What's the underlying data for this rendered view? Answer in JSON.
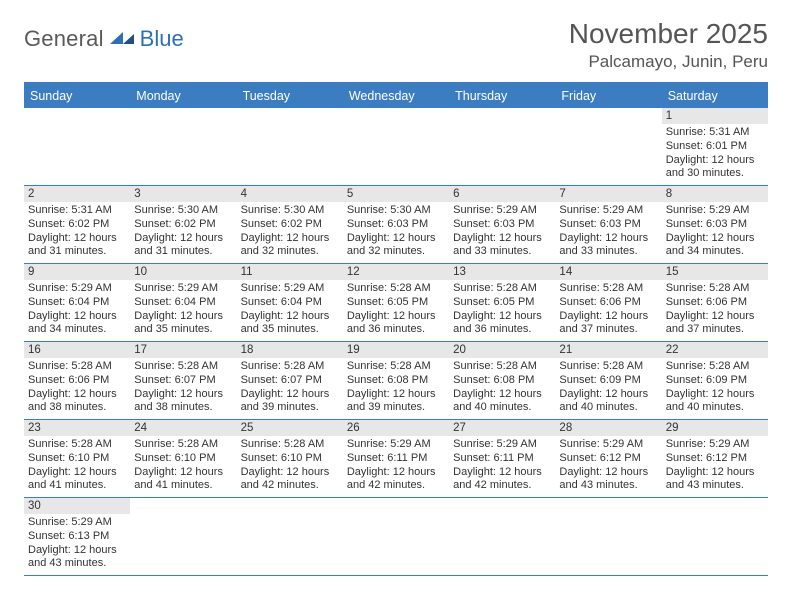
{
  "logo": {
    "text1": "General",
    "text2": "Blue"
  },
  "title": "November 2025",
  "location": "Palcamayo, Junin, Peru",
  "colors": {
    "header_bg": "#3b7dc0",
    "header_text": "#ffffff",
    "daynum_bg": "#e7e7e7",
    "divider": "#3b7dc0",
    "body_text": "#333333",
    "title_text": "#555555",
    "logo_gray": "#5a5a5a",
    "logo_blue": "#2f6fb3",
    "page_bg": "#ffffff"
  },
  "fonts": {
    "title_size_pt": 21,
    "location_size_pt": 13,
    "header_size_pt": 9.5,
    "daynum_size_pt": 8.5,
    "body_size_pt": 8.3
  },
  "dayNames": [
    "Sunday",
    "Monday",
    "Tuesday",
    "Wednesday",
    "Thursday",
    "Friday",
    "Saturday"
  ],
  "weeks": [
    [
      null,
      null,
      null,
      null,
      null,
      null,
      {
        "n": "1",
        "sunrise": "Sunrise: 5:31 AM",
        "sunset": "Sunset: 6:01 PM",
        "daylight": "Daylight: 12 hours and 30 minutes."
      }
    ],
    [
      {
        "n": "2",
        "sunrise": "Sunrise: 5:31 AM",
        "sunset": "Sunset: 6:02 PM",
        "daylight": "Daylight: 12 hours and 31 minutes."
      },
      {
        "n": "3",
        "sunrise": "Sunrise: 5:30 AM",
        "sunset": "Sunset: 6:02 PM",
        "daylight": "Daylight: 12 hours and 31 minutes."
      },
      {
        "n": "4",
        "sunrise": "Sunrise: 5:30 AM",
        "sunset": "Sunset: 6:02 PM",
        "daylight": "Daylight: 12 hours and 32 minutes."
      },
      {
        "n": "5",
        "sunrise": "Sunrise: 5:30 AM",
        "sunset": "Sunset: 6:03 PM",
        "daylight": "Daylight: 12 hours and 32 minutes."
      },
      {
        "n": "6",
        "sunrise": "Sunrise: 5:29 AM",
        "sunset": "Sunset: 6:03 PM",
        "daylight": "Daylight: 12 hours and 33 minutes."
      },
      {
        "n": "7",
        "sunrise": "Sunrise: 5:29 AM",
        "sunset": "Sunset: 6:03 PM",
        "daylight": "Daylight: 12 hours and 33 minutes."
      },
      {
        "n": "8",
        "sunrise": "Sunrise: 5:29 AM",
        "sunset": "Sunset: 6:03 PM",
        "daylight": "Daylight: 12 hours and 34 minutes."
      }
    ],
    [
      {
        "n": "9",
        "sunrise": "Sunrise: 5:29 AM",
        "sunset": "Sunset: 6:04 PM",
        "daylight": "Daylight: 12 hours and 34 minutes."
      },
      {
        "n": "10",
        "sunrise": "Sunrise: 5:29 AM",
        "sunset": "Sunset: 6:04 PM",
        "daylight": "Daylight: 12 hours and 35 minutes."
      },
      {
        "n": "11",
        "sunrise": "Sunrise: 5:29 AM",
        "sunset": "Sunset: 6:04 PM",
        "daylight": "Daylight: 12 hours and 35 minutes."
      },
      {
        "n": "12",
        "sunrise": "Sunrise: 5:28 AM",
        "sunset": "Sunset: 6:05 PM",
        "daylight": "Daylight: 12 hours and 36 minutes."
      },
      {
        "n": "13",
        "sunrise": "Sunrise: 5:28 AM",
        "sunset": "Sunset: 6:05 PM",
        "daylight": "Daylight: 12 hours and 36 minutes."
      },
      {
        "n": "14",
        "sunrise": "Sunrise: 5:28 AM",
        "sunset": "Sunset: 6:06 PM",
        "daylight": "Daylight: 12 hours and 37 minutes."
      },
      {
        "n": "15",
        "sunrise": "Sunrise: 5:28 AM",
        "sunset": "Sunset: 6:06 PM",
        "daylight": "Daylight: 12 hours and 37 minutes."
      }
    ],
    [
      {
        "n": "16",
        "sunrise": "Sunrise: 5:28 AM",
        "sunset": "Sunset: 6:06 PM",
        "daylight": "Daylight: 12 hours and 38 minutes."
      },
      {
        "n": "17",
        "sunrise": "Sunrise: 5:28 AM",
        "sunset": "Sunset: 6:07 PM",
        "daylight": "Daylight: 12 hours and 38 minutes."
      },
      {
        "n": "18",
        "sunrise": "Sunrise: 5:28 AM",
        "sunset": "Sunset: 6:07 PM",
        "daylight": "Daylight: 12 hours and 39 minutes."
      },
      {
        "n": "19",
        "sunrise": "Sunrise: 5:28 AM",
        "sunset": "Sunset: 6:08 PM",
        "daylight": "Daylight: 12 hours and 39 minutes."
      },
      {
        "n": "20",
        "sunrise": "Sunrise: 5:28 AM",
        "sunset": "Sunset: 6:08 PM",
        "daylight": "Daylight: 12 hours and 40 minutes."
      },
      {
        "n": "21",
        "sunrise": "Sunrise: 5:28 AM",
        "sunset": "Sunset: 6:09 PM",
        "daylight": "Daylight: 12 hours and 40 minutes."
      },
      {
        "n": "22",
        "sunrise": "Sunrise: 5:28 AM",
        "sunset": "Sunset: 6:09 PM",
        "daylight": "Daylight: 12 hours and 40 minutes."
      }
    ],
    [
      {
        "n": "23",
        "sunrise": "Sunrise: 5:28 AM",
        "sunset": "Sunset: 6:10 PM",
        "daylight": "Daylight: 12 hours and 41 minutes."
      },
      {
        "n": "24",
        "sunrise": "Sunrise: 5:28 AM",
        "sunset": "Sunset: 6:10 PM",
        "daylight": "Daylight: 12 hours and 41 minutes."
      },
      {
        "n": "25",
        "sunrise": "Sunrise: 5:28 AM",
        "sunset": "Sunset: 6:10 PM",
        "daylight": "Daylight: 12 hours and 42 minutes."
      },
      {
        "n": "26",
        "sunrise": "Sunrise: 5:29 AM",
        "sunset": "Sunset: 6:11 PM",
        "daylight": "Daylight: 12 hours and 42 minutes."
      },
      {
        "n": "27",
        "sunrise": "Sunrise: 5:29 AM",
        "sunset": "Sunset: 6:11 PM",
        "daylight": "Daylight: 12 hours and 42 minutes."
      },
      {
        "n": "28",
        "sunrise": "Sunrise: 5:29 AM",
        "sunset": "Sunset: 6:12 PM",
        "daylight": "Daylight: 12 hours and 43 minutes."
      },
      {
        "n": "29",
        "sunrise": "Sunrise: 5:29 AM",
        "sunset": "Sunset: 6:12 PM",
        "daylight": "Daylight: 12 hours and 43 minutes."
      }
    ],
    [
      {
        "n": "30",
        "sunrise": "Sunrise: 5:29 AM",
        "sunset": "Sunset: 6:13 PM",
        "daylight": "Daylight: 12 hours and 43 minutes."
      },
      null,
      null,
      null,
      null,
      null,
      null
    ]
  ]
}
